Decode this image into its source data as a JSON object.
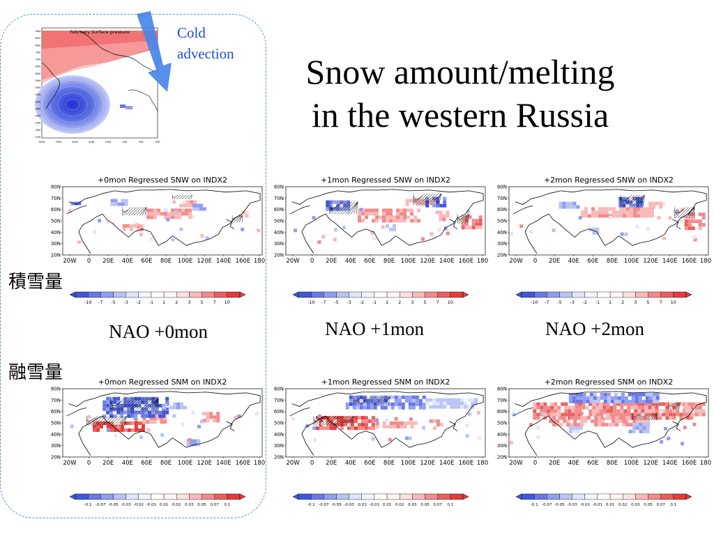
{
  "slide": {
    "title_lines": [
      "Snow amount/melting",
      "in the western Russia"
    ]
  },
  "inset": {
    "title": "February Surface pressure",
    "arrow_label_lines": [
      "Cold",
      "advection"
    ],
    "y_ticks": [
      "90N",
      "85N",
      "80N",
      "75N",
      "70N",
      "65N",
      "60N",
      "55N",
      "50N",
      "45N",
      "40N",
      "35N",
      "30N",
      "25N",
      "20N",
      "15N"
    ],
    "x_ticks": [
      "90W",
      "70W",
      "50W",
      "30W",
      "10W",
      "10E",
      "30E",
      "50E"
    ]
  },
  "row_labels": {
    "snw": "積雪量",
    "snm": "融雪量"
  },
  "lag_labels": [
    "NAO +0mon",
    "NAO +1mon",
    "NAO +2mon"
  ],
  "panels": [
    {
      "title": "+0mon Regressed SNW on INDX2",
      "variable": "SNW"
    },
    {
      "title": "+1mon Regressed SNW on INDX2",
      "variable": "SNW"
    },
    {
      "title": "+2mon Regressed SNW on INDX2",
      "variable": "SNW"
    },
    {
      "title": "+0mon Regressed SNM on INDX2",
      "variable": "SNM"
    },
    {
      "title": "+1mon Regressed SNM on INDX2",
      "variable": "SNM"
    },
    {
      "title": "+2mon Regressed SNM on INDX2",
      "variable": "SNM"
    }
  ],
  "map_axes": {
    "y_ticks": [
      "80N",
      "70N",
      "60N",
      "50N",
      "40N",
      "30N",
      "20N"
    ],
    "x_ticks": [
      "20W",
      "0",
      "20E",
      "40E",
      "60E",
      "80E",
      "100E",
      "120E",
      "140E",
      "160E",
      "180"
    ]
  },
  "colorbars": {
    "snw": [
      "-10",
      "-7",
      "-5",
      "-3",
      "-2",
      "-1",
      "1",
      "2",
      "3",
      "5",
      "7",
      "10"
    ],
    "snm": [
      "-0.1",
      "-0.07",
      "-0.05",
      "-0.03",
      "-0.02",
      "-0.01",
      "0.01",
      "0.02",
      "0.03",
      "0.05",
      "0.07",
      "0.1"
    ]
  },
  "colors": {
    "positive": "#e8383d",
    "negative": "#3f57d8",
    "box_border": "#5b8fd6",
    "arrow": "#4a86e8",
    "cold_text": "#1f4fd6"
  }
}
